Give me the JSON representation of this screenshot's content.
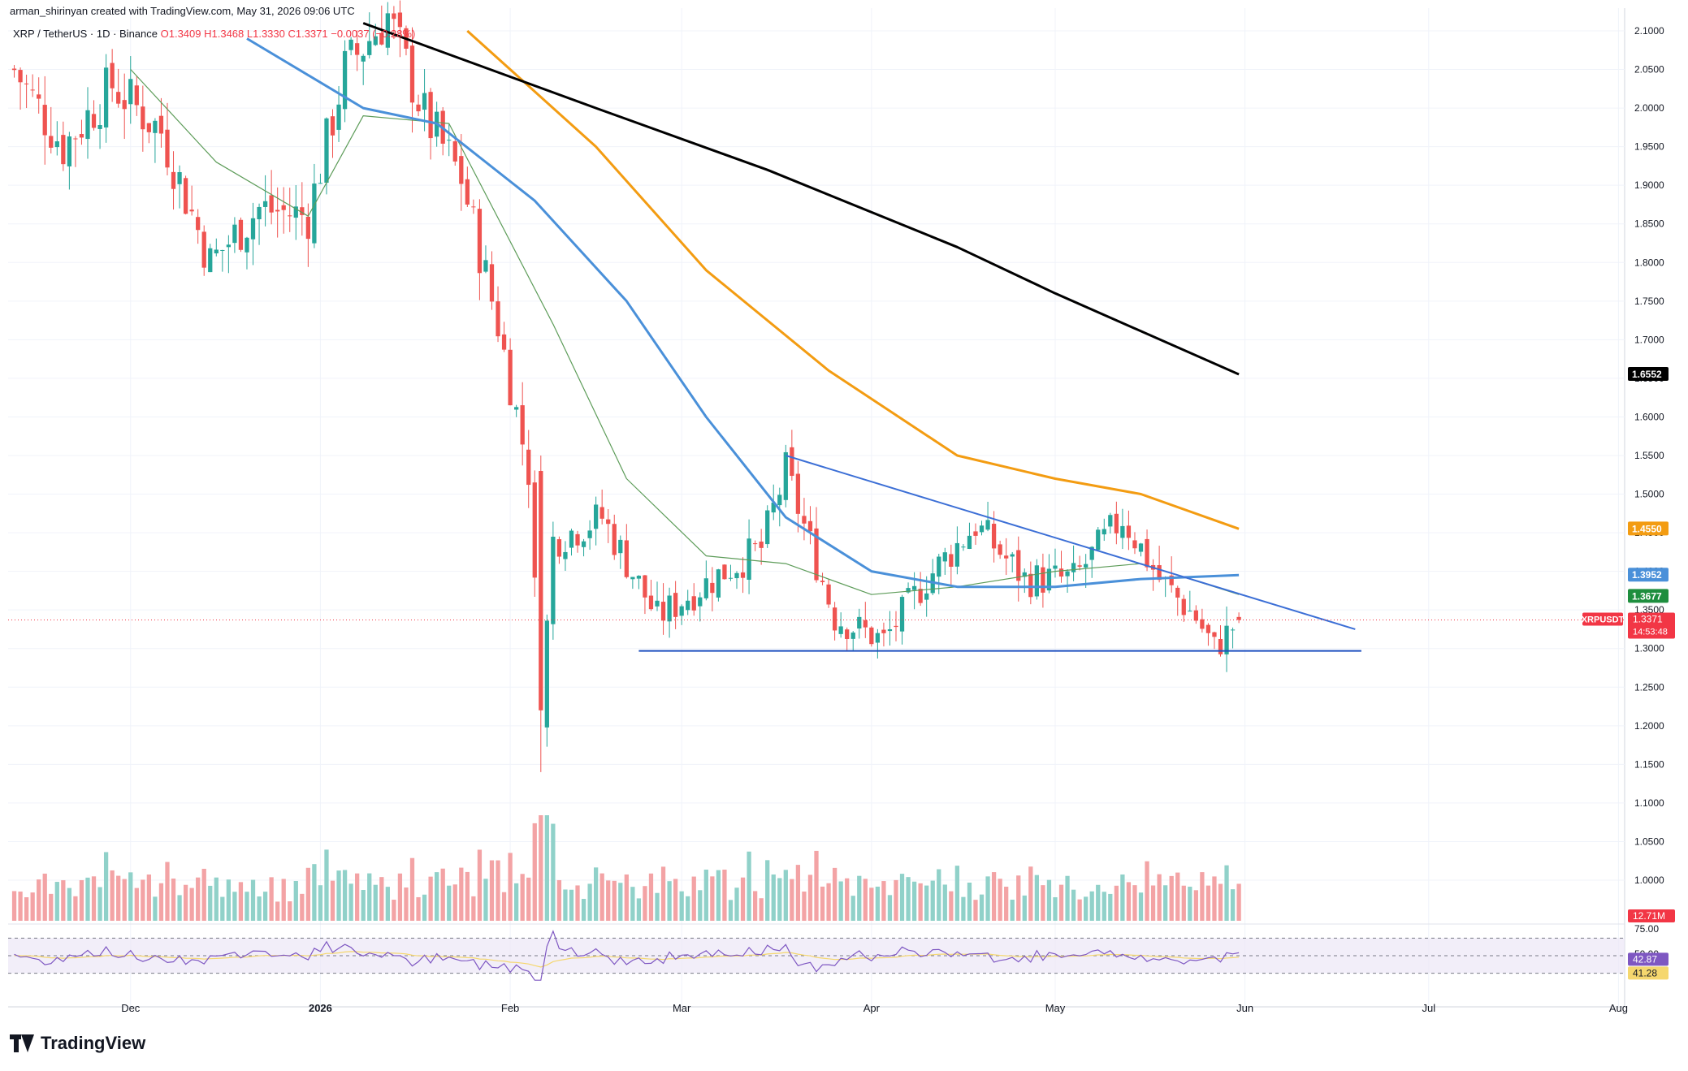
{
  "header": {
    "attribution": "arman_shirinyan created with TradingView.com, May 31, 2026 09:06 UTC",
    "symbol": "XRP / TetherUS · 1D · Binance",
    "ohlc": "O1.3409 H1.3468 L1.3330 C1.3371 −0.0037 (−0.28%)"
  },
  "footer": {
    "brand": "TradingView"
  },
  "colors": {
    "up": "#26a69a",
    "down": "#ef5350",
    "vol_up": "#90d1c9",
    "vol_down": "#f3a3a5",
    "ma20": "#5d9c59",
    "ma50": "#4a90d9",
    "ma100": "#f39c12",
    "ma200": "#000000",
    "trendline": "#2962ff",
    "rsi_line": "#7e57c2",
    "rsi_ma": "#f5d76e"
  },
  "chart_data": {
    "type": "candlestick",
    "symbol": "XRPUSDT",
    "timeframe": "1D",
    "ylim": [
      1.0,
      2.1
    ],
    "x_range": [
      "2025-11-11",
      "2026-08-02"
    ],
    "x_tick_labels": [
      "Dec",
      "2026",
      "Feb",
      "Mar",
      "Apr",
      "May",
      "Jun",
      "Jul",
      "Aug"
    ],
    "y_tick_labels": [
      "2.1000",
      "2.0500",
      "2.0000",
      "1.9500",
      "1.9000",
      "1.8500",
      "1.8000",
      "1.7500",
      "1.7000",
      "1.6500",
      "1.6000",
      "1.5500",
      "1.5000",
      "1.4500",
      "1.4000",
      "1.3500",
      "1.3000",
      "1.2500",
      "1.2000",
      "1.1500",
      "1.1000",
      "1.0500",
      "1.0000"
    ],
    "grid": true,
    "price_labels": [
      {
        "name": "ma200",
        "value": "1.6552",
        "color": "#000000"
      },
      {
        "name": "ma100",
        "value": "1.4550",
        "color": "#f39c12"
      },
      {
        "name": "ma50",
        "value": "1.3952",
        "color": "#4a90d9"
      },
      {
        "name": "trend",
        "value": "1.3677",
        "color": "#1e8e3e"
      },
      {
        "name": "last",
        "value": "1.3371",
        "color": "#f23645",
        "symbol": "XRPUSDT",
        "countdown": "14:53:48"
      }
    ],
    "volume_label": "12.71M",
    "rsi": {
      "label_hi": "75.00",
      "label_mid": "50.00",
      "value": "42.87",
      "ma_value": "41.28"
    },
    "candles_summary": {
      "anchors": [
        {
          "date": "2025-11-12",
          "close": 2.05
        },
        {
          "date": "2025-11-20",
          "close": 1.95
        },
        {
          "date": "2025-11-28",
          "close": 2.03
        },
        {
          "date": "2025-12-06",
          "close": 1.97
        },
        {
          "date": "2025-12-14",
          "close": 1.8
        },
        {
          "date": "2025-12-22",
          "close": 1.87
        },
        {
          "date": "2025-12-30",
          "close": 1.86
        },
        {
          "date": "2026-01-05",
          "close": 2.05
        },
        {
          "date": "2026-01-12",
          "close": 2.12
        },
        {
          "date": "2026-01-18",
          "close": 1.99
        },
        {
          "date": "2026-01-24",
          "close": 1.91
        },
        {
          "date": "2026-01-30",
          "close": 1.72
        },
        {
          "date": "2026-02-04",
          "close": 1.53
        },
        {
          "date": "2026-02-06",
          "close": 1.22
        },
        {
          "date": "2026-02-08",
          "close": 1.44
        },
        {
          "date": "2026-02-16",
          "close": 1.47
        },
        {
          "date": "2026-02-25",
          "close": 1.34
        },
        {
          "date": "2026-03-06",
          "close": 1.39
        },
        {
          "date": "2026-03-14",
          "close": 1.43
        },
        {
          "date": "2026-03-18",
          "close": 1.53
        },
        {
          "date": "2026-03-26",
          "close": 1.34
        },
        {
          "date": "2026-04-03",
          "close": 1.31
        },
        {
          "date": "2026-04-10",
          "close": 1.39
        },
        {
          "date": "2026-04-18",
          "close": 1.46
        },
        {
          "date": "2026-04-26",
          "close": 1.39
        },
        {
          "date": "2026-05-04",
          "close": 1.39
        },
        {
          "date": "2026-05-12",
          "close": 1.47
        },
        {
          "date": "2026-05-18",
          "close": 1.39
        },
        {
          "date": "2026-05-24",
          "close": 1.34
        },
        {
          "date": "2026-05-27",
          "close": 1.3
        },
        {
          "date": "2026-05-31",
          "close": 1.3371
        }
      ]
    },
    "moving_averages": [
      {
        "name": "ma20",
        "points": [
          [
            "2025-12-01",
            2.05
          ],
          [
            "2025-12-15",
            1.93
          ],
          [
            "2025-12-30",
            1.86
          ],
          [
            "2026-01-08",
            1.99
          ],
          [
            "2026-01-22",
            1.98
          ],
          [
            "2026-02-08",
            1.72
          ],
          [
            "2026-02-20",
            1.52
          ],
          [
            "2026-03-05",
            1.42
          ],
          [
            "2026-03-18",
            1.41
          ],
          [
            "2026-04-01",
            1.37
          ],
          [
            "2026-04-15",
            1.38
          ],
          [
            "2026-05-01",
            1.4
          ],
          [
            "2026-05-15",
            1.41
          ],
          [
            "2026-05-31",
            1.37
          ]
        ]
      },
      {
        "name": "ma50",
        "points": [
          [
            "2025-12-20",
            2.09
          ],
          [
            "2026-01-08",
            2.0
          ],
          [
            "2026-01-20",
            1.98
          ],
          [
            "2026-02-05",
            1.88
          ],
          [
            "2026-02-20",
            1.75
          ],
          [
            "2026-03-05",
            1.6
          ],
          [
            "2026-03-18",
            1.47
          ],
          [
            "2026-04-01",
            1.4
          ],
          [
            "2026-04-15",
            1.38
          ],
          [
            "2026-05-01",
            1.38
          ],
          [
            "2026-05-15",
            1.39
          ],
          [
            "2026-05-31",
            1.3952
          ]
        ]
      },
      {
        "name": "ma100",
        "points": [
          [
            "2026-01-25",
            2.1
          ],
          [
            "2026-02-15",
            1.95
          ],
          [
            "2026-03-05",
            1.79
          ],
          [
            "2026-03-25",
            1.66
          ],
          [
            "2026-04-15",
            1.55
          ],
          [
            "2026-05-01",
            1.52
          ],
          [
            "2026-05-15",
            1.5
          ],
          [
            "2026-05-31",
            1.455
          ]
        ]
      },
      {
        "name": "ma200",
        "points": [
          [
            "2026-01-08",
            2.11
          ],
          [
            "2026-02-15",
            2.0
          ],
          [
            "2026-03-15",
            1.92
          ],
          [
            "2026-04-15",
            1.82
          ],
          [
            "2026-05-01",
            1.76
          ],
          [
            "2026-05-31",
            1.6552
          ]
        ]
      }
    ],
    "trendlines": [
      {
        "name": "descending-resistance",
        "from": [
          "2026-03-18",
          1.55
        ],
        "to": [
          "2026-06-19",
          1.325
        ]
      },
      {
        "name": "horizontal-support",
        "from": [
          "2026-02-22",
          1.297
        ],
        "to": [
          "2026-06-20",
          1.297
        ]
      }
    ]
  }
}
